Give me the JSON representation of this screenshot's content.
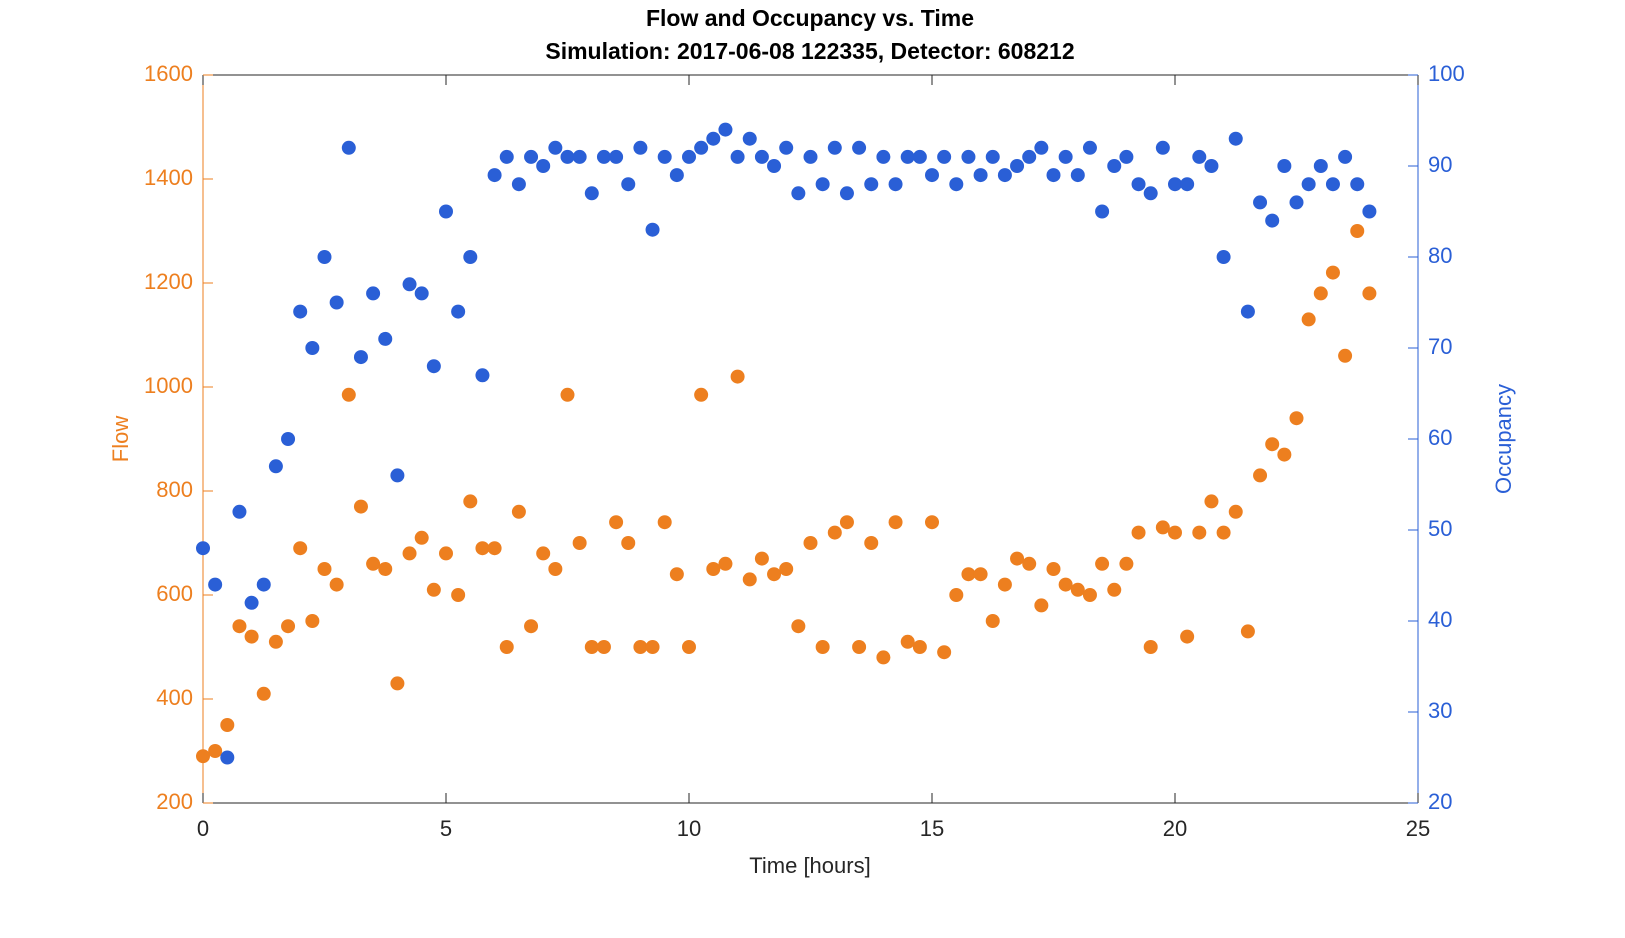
{
  "chart_data": {
    "type": "scatter",
    "title": "Flow and Occupancy vs. Time",
    "subtitle": "Simulation:  2017-06-08 122335,  Detector:  608212",
    "x_label": "Time [hours]",
    "y_label": "Flow",
    "y2_label": "Occupancy",
    "xlim": [
      0,
      25
    ],
    "xticks": [
      0,
      5,
      10,
      15,
      20,
      25
    ],
    "ylim": [
      200,
      1600
    ],
    "yticks": [
      200,
      400,
      600,
      800,
      1000,
      1200,
      1400,
      1600
    ],
    "y2lim": [
      20,
      100
    ],
    "y2ticks": [
      20,
      30,
      40,
      50,
      60,
      70,
      80,
      90,
      100
    ],
    "x": [
      0,
      0.25,
      0.5,
      0.75,
      1,
      1.25,
      1.5,
      1.75,
      2,
      2.25,
      2.5,
      2.75,
      3,
      3.25,
      3.5,
      3.75,
      4,
      4.25,
      4.5,
      4.75,
      5,
      5.25,
      5.5,
      5.75,
      6,
      6.25,
      6.5,
      6.75,
      7,
      7.25,
      7.5,
      7.75,
      8,
      8.25,
      8.5,
      8.75,
      9,
      9.25,
      9.5,
      9.75,
      10,
      10.25,
      10.5,
      10.75,
      11,
      11.25,
      11.5,
      11.75,
      12,
      12.25,
      12.5,
      12.75,
      13,
      13.25,
      13.5,
      13.75,
      14,
      14.25,
      14.5,
      14.75,
      15,
      15.25,
      15.5,
      15.75,
      16,
      16.25,
      16.5,
      16.75,
      17,
      17.25,
      17.5,
      17.75,
      18,
      18.25,
      18.5,
      18.75,
      19,
      19.25,
      19.5,
      19.75,
      20,
      20.25,
      20.5,
      20.75,
      21,
      21.25,
      21.5,
      21.75,
      22,
      22.25,
      22.5,
      22.75,
      23,
      23.25,
      23.5,
      23.75,
      24
    ],
    "series": [
      {
        "color": "#ED7F1F",
        "axis": "y",
        "values": [
          290,
          300,
          350,
          540,
          520,
          410,
          510,
          540,
          690,
          550,
          650,
          620,
          985,
          770,
          660,
          650,
          430,
          680,
          710,
          610,
          680,
          600,
          780,
          690,
          690,
          500,
          760,
          540,
          680,
          650,
          985,
          700,
          500,
          500,
          740,
          700,
          500,
          500,
          740,
          640,
          500,
          985,
          650,
          660,
          1020,
          630,
          670,
          640,
          650,
          540,
          700,
          500,
          720,
          740,
          500,
          700,
          480,
          740,
          510,
          500,
          740,
          490,
          600,
          640,
          640,
          550,
          620,
          670,
          660,
          580,
          650,
          620,
          610,
          600,
          660,
          610,
          660,
          720,
          500,
          730,
          720,
          520,
          720,
          780,
          720,
          760,
          530,
          830,
          890,
          870,
          940,
          1130,
          1180,
          1220,
          1060,
          1300,
          1180
        ]
      },
      {
        "color": "#2A5FD6",
        "axis": "y2",
        "values": [
          48,
          44,
          25,
          52,
          42,
          44,
          57,
          60,
          74,
          70,
          80,
          75,
          92,
          69,
          76,
          71,
          56,
          77,
          76,
          68,
          85,
          74,
          80,
          67,
          89,
          91,
          88,
          91,
          90,
          92,
          91,
          91,
          87,
          91,
          91,
          88,
          92,
          83,
          91,
          89,
          91,
          92,
          93,
          94,
          91,
          93,
          91,
          90,
          92,
          87,
          91,
          88,
          92,
          87,
          92,
          88,
          91,
          88,
          91,
          91,
          89,
          91,
          88,
          91,
          89,
          91,
          89,
          90,
          91,
          92,
          89,
          91,
          89,
          92,
          85,
          90,
          91,
          88,
          87,
          92,
          88,
          88,
          91,
          90,
          80,
          93,
          74,
          86,
          84,
          90,
          86,
          88,
          90,
          88,
          91,
          88,
          85
        ]
      }
    ]
  }
}
